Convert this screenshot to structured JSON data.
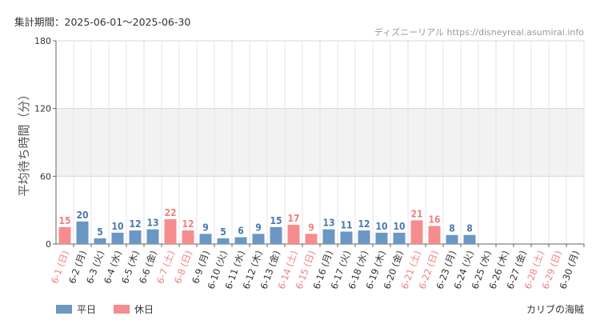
{
  "header": {
    "period": "集計期間：2025-06-01～2025-06-30",
    "credit": "ディズニーリアル https://disneyreal.asumirai.info"
  },
  "footer": {
    "area_name": "カリブの海賊"
  },
  "colors": {
    "weekday": "#6b97c4",
    "holiday": "#f78c8e",
    "holiday_text": "#f08080",
    "weekday_text": "#4a78b0",
    "band": "#f2f2f2",
    "grid": "#e6e6e6"
  },
  "chart_data": {
    "type": "bar",
    "title": "",
    "ylabel": "平均待ち時間（分）",
    "xlabel": "",
    "ylim": [
      0,
      180
    ],
    "yticks": [
      0,
      60,
      120,
      180
    ],
    "shaded_bands": [
      [
        60,
        120
      ]
    ],
    "grid": true,
    "legend_position": "bottom-left",
    "legend": [
      {
        "name": "平日",
        "color": "#6b97c4"
      },
      {
        "name": "休日",
        "color": "#f78c8e"
      }
    ],
    "categories": [
      "6-1 (日)",
      "6-2 (月)",
      "6-3 (火)",
      "6-4 (水)",
      "6-5 (木)",
      "6-6 (金)",
      "6-7 (土)",
      "6-8 (日)",
      "6-9 (月)",
      "6-10 (火)",
      "6-11 (水)",
      "6-12 (木)",
      "6-13 (金)",
      "6-14 (土)",
      "6-15 (日)",
      "6-16 (月)",
      "6-17 (火)",
      "6-18 (水)",
      "6-19 (木)",
      "6-20 (金)",
      "6-21 (土)",
      "6-22 (日)",
      "6-23 (月)",
      "6-24 (火)",
      "6-25 (水)",
      "6-26 (木)",
      "6-27 (金)",
      "6-28 (土)",
      "6-29 (日)",
      "6-30 (月)"
    ],
    "holiday": [
      true,
      false,
      false,
      false,
      false,
      false,
      true,
      true,
      false,
      false,
      false,
      false,
      false,
      true,
      true,
      false,
      false,
      false,
      false,
      false,
      true,
      true,
      false,
      false,
      false,
      false,
      false,
      true,
      true,
      false
    ],
    "values": [
      15,
      20,
      5,
      10,
      12,
      13,
      22,
      12,
      9,
      5,
      6,
      9,
      15,
      17,
      9,
      13,
      11,
      12,
      10,
      10,
      21,
      16,
      8,
      8,
      null,
      null,
      null,
      null,
      null,
      null
    ]
  }
}
